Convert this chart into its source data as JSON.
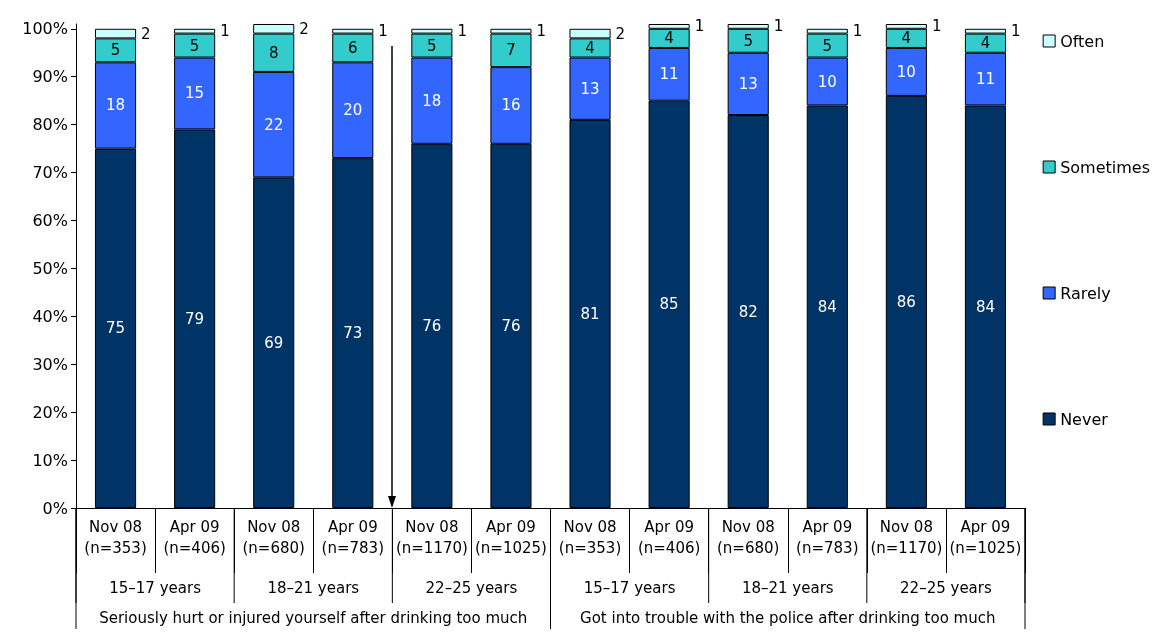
{
  "chart_data": {
    "type": "bar",
    "stacked": true,
    "categories": [
      "Nov 08\n(n=353)",
      "Apr 09\n(n=406)",
      "Nov 08\n(n=680)",
      "Apr 09\n(n=783)",
      "Nov 08\n(n=1170)",
      "Apr 09\n(n=1025)",
      "Nov 08\n(n=353)",
      "Apr 09\n(n=406)",
      "Nov 08\n(n=680)",
      "Apr 09\n(n=783)",
      "Nov 08\n(n=1170)",
      "Apr 09\n(n=1025)"
    ],
    "series": [
      {
        "name": "Never",
        "color": "#003366",
        "values": [
          75,
          79,
          69,
          73,
          76,
          76,
          81,
          85,
          82,
          84,
          86,
          84
        ]
      },
      {
        "name": "Rarely",
        "color": "#3366ff",
        "values": [
          18,
          15,
          22,
          20,
          18,
          16,
          13,
          11,
          13,
          10,
          10,
          11
        ]
      },
      {
        "name": "Sometimes",
        "color": "#33cccc",
        "values": [
          5,
          5,
          8,
          6,
          5,
          7,
          4,
          4,
          5,
          5,
          4,
          4
        ]
      },
      {
        "name": "Often",
        "color": "#ccffff",
        "values": [
          2,
          1,
          2,
          1,
          1,
          1,
          2,
          1,
          1,
          1,
          1,
          1
        ]
      }
    ],
    "ylim": [
      0,
      101
    ],
    "yticks": [
      {
        "value": 0,
        "label": "0%"
      },
      {
        "value": 10,
        "label": "10%"
      },
      {
        "value": 20,
        "label": "20%"
      },
      {
        "value": 30,
        "label": "30%"
      },
      {
        "value": 40,
        "label": "40%"
      },
      {
        "value": 50,
        "label": "50%"
      },
      {
        "value": 60,
        "label": "60%"
      },
      {
        "value": 70,
        "label": "70%"
      },
      {
        "value": 80,
        "label": "80%"
      },
      {
        "value": 90,
        "label": "90%"
      },
      {
        "value": 100,
        "label": "100%"
      }
    ],
    "annotations": [
      "15–17 years",
      "18–21 years",
      "22–25 years",
      "15–17 years",
      "18–21 years",
      "22–25 years",
      "Seriously hurt or injured yourself after drinking too much",
      "Got into trouble with the police after drinking too much"
    ],
    "data_labels": true,
    "legend": "right",
    "grid": false
  }
}
